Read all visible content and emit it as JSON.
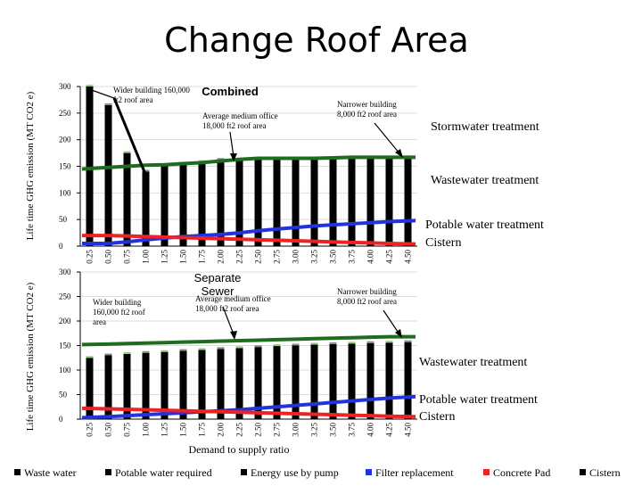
{
  "chart_data": {
    "title": "Change Roof Area",
    "colors": {
      "bar": "#000000",
      "green": "#1f6b1f",
      "blue": "#2233dd",
      "red": "#ee2222",
      "lightgreen": "#8fcf7f",
      "gray": "#8a8a8a",
      "arrow": "#000000"
    },
    "shared_x": {
      "categories": [
        "0.25",
        "0.50",
        "0.75",
        "1.00",
        "1.25",
        "1.50",
        "1.75",
        "2.00",
        "2.25",
        "2.50",
        "2.75",
        "3.00",
        "3.25",
        "3.50",
        "3.75",
        "4.00",
        "4.25",
        "4.50"
      ],
      "xlabel": "Demand to supply ratio"
    },
    "legend": [
      {
        "label": "Waste water",
        "swatch": "#000000"
      },
      {
        "label": "Potable water required",
        "swatch": "#000000"
      },
      {
        "label": "Energy use by pump",
        "swatch": "#000000"
      },
      {
        "label": "Filter replacement",
        "swatch": "#2233dd"
      },
      {
        "label": "Concrete Pad",
        "swatch": "#ee2222"
      },
      {
        "label": "Cistern",
        "swatch": "#000000"
      }
    ],
    "panels": [
      {
        "type": "bar",
        "subtitle": "Combined",
        "ylabel": "Life time GHG emission (MT CO2 e)",
        "ylim": [
          0,
          300
        ],
        "yticks": [
          0,
          50,
          100,
          150,
          200,
          250,
          300
        ],
        "values": [
          300,
          265,
          175,
          140,
          150,
          155,
          158,
          162,
          163,
          163,
          164,
          164,
          165,
          165,
          165,
          165,
          165,
          165
        ],
        "green_line": [
          145,
          148,
          150,
          152,
          153,
          155,
          157,
          160,
          163,
          165,
          165,
          165,
          165,
          166,
          167,
          167,
          167,
          167
        ],
        "blue_line": [
          5,
          5,
          8,
          12,
          15,
          18,
          20,
          22,
          25,
          29,
          32,
          35,
          38,
          40,
          42,
          44,
          46,
          48
        ],
        "red_line": [
          20,
          20,
          19,
          18,
          17,
          16,
          15,
          14,
          13,
          12,
          11,
          10,
          9,
          8,
          7,
          6,
          5,
          4
        ],
        "annotations": {
          "wider": "Wider building 160,000 ft2 roof area",
          "average": "Average medium office 18,000 ft2 roof area",
          "narrower": "Narrower building 8,000 ft2 roof area"
        },
        "right_labels": {
          "stormwater": "Stormwater treatment",
          "wastewater": "Wastewater treatment",
          "potable": "Potable water treatment",
          "cistern": "Cistern"
        }
      },
      {
        "type": "bar",
        "subtitle": "Separate Sewer",
        "ylabel": "Life time GHG emission (MT CO2 e)",
        "ylim": [
          0,
          300
        ],
        "yticks": [
          0,
          50,
          100,
          150,
          200,
          250,
          300
        ],
        "values": [
          125,
          130,
          133,
          135,
          137,
          139,
          141,
          143,
          145,
          147,
          149,
          150,
          152,
          153,
          154,
          155,
          156,
          157
        ],
        "green_line": [
          152,
          153,
          154,
          155,
          156,
          157,
          158,
          159,
          160,
          161,
          162,
          163,
          164,
          165,
          166,
          167,
          168,
          168
        ],
        "blue_line": [
          3,
          5,
          7,
          9,
          11,
          13,
          15,
          17,
          19,
          22,
          25,
          28,
          31,
          34,
          37,
          40,
          43,
          46
        ],
        "red_line": [
          22,
          21,
          20,
          19,
          18,
          17,
          16,
          15,
          14,
          13,
          12,
          11,
          10,
          9,
          8,
          7,
          6,
          5
        ],
        "annotations": {
          "wider": "Wider building 160,000 ft2 roof area",
          "average": "Average medium office 18,000 ft2 roof area",
          "narrower": "Narrower building 8,000 ft2 roof area"
        },
        "right_labels": {
          "wastewater": "Wastewater treatment",
          "potable": "Potable water treatment",
          "cistern": "Cistern"
        }
      }
    ]
  }
}
